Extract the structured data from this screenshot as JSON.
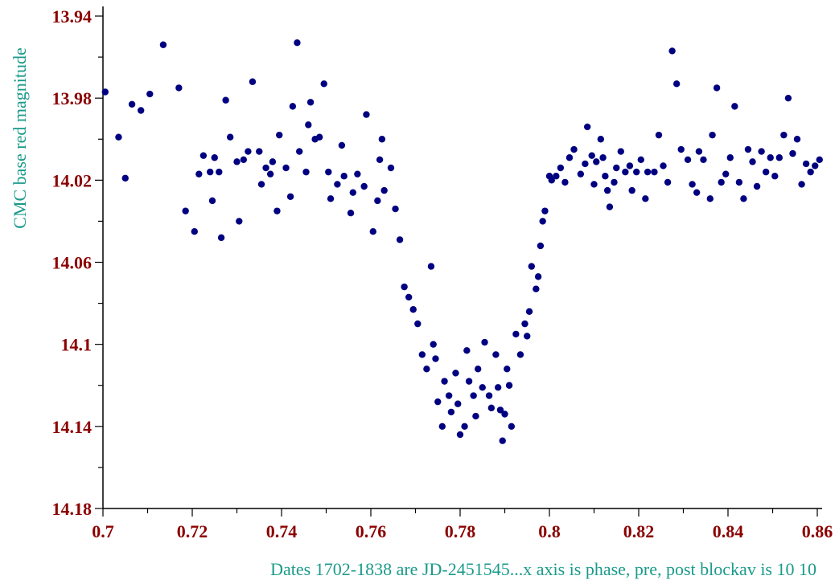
{
  "chart_data": {
    "type": "scatter",
    "title": "",
    "xlabel": "Dates  1702-1838 are JD-2451545...x axis is phase, pre, post blockav is 10 10",
    "ylabel": "CMC base red magnitude",
    "xlim": [
      0.7,
      0.86
    ],
    "ylim": [
      13.94,
      14.18
    ],
    "y_inverted": true,
    "grid": false,
    "legend": "none",
    "x_ticks": [
      "0.7",
      "0.72",
      "0.74",
      "0.76",
      "0.78",
      "0.8",
      "0.82",
      "0.84",
      "0.86"
    ],
    "y_ticks": [
      "13.94",
      "13.98",
      "14.02",
      "14.06",
      "14.1",
      "14.14",
      "14.18"
    ],
    "x_ticks_values": [
      0.7,
      0.72,
      0.74,
      0.76,
      0.78,
      0.8,
      0.82,
      0.84,
      0.86
    ],
    "y_ticks_values": [
      13.94,
      13.98,
      14.02,
      14.06,
      14.1,
      14.14,
      14.18
    ],
    "point_color": "#000080",
    "series": [
      {
        "points": [
          [
            0.7005,
            13.977
          ],
          [
            0.7035,
            13.999
          ],
          [
            0.705,
            14.019
          ],
          [
            0.7065,
            13.983
          ],
          [
            0.7085,
            13.986
          ],
          [
            0.7105,
            13.978
          ],
          [
            0.7135,
            13.954
          ],
          [
            0.717,
            13.975
          ],
          [
            0.7185,
            14.035
          ],
          [
            0.7205,
            14.045
          ],
          [
            0.7215,
            14.017
          ],
          [
            0.7225,
            14.008
          ],
          [
            0.724,
            14.016
          ],
          [
            0.7245,
            14.03
          ],
          [
            0.725,
            14.009
          ],
          [
            0.726,
            14.016
          ],
          [
            0.7265,
            14.048
          ],
          [
            0.7275,
            13.981
          ],
          [
            0.7285,
            13.999
          ],
          [
            0.73,
            14.011
          ],
          [
            0.7305,
            14.04
          ],
          [
            0.7315,
            14.01
          ],
          [
            0.7325,
            14.006
          ],
          [
            0.7335,
            13.972
          ],
          [
            0.735,
            14.006
          ],
          [
            0.7355,
            14.022
          ],
          [
            0.7365,
            14.014
          ],
          [
            0.7375,
            14.017
          ],
          [
            0.738,
            14.011
          ],
          [
            0.739,
            14.035
          ],
          [
            0.7395,
            13.998
          ],
          [
            0.741,
            14.014
          ],
          [
            0.742,
            14.028
          ],
          [
            0.7425,
            13.984
          ],
          [
            0.7435,
            13.953
          ],
          [
            0.744,
            14.006
          ],
          [
            0.7455,
            14.016
          ],
          [
            0.746,
            13.993
          ],
          [
            0.7465,
            13.982
          ],
          [
            0.7475,
            14.0
          ],
          [
            0.7485,
            13.999
          ],
          [
            0.7495,
            13.973
          ],
          [
            0.7505,
            14.016
          ],
          [
            0.751,
            14.029
          ],
          [
            0.7525,
            14.022
          ],
          [
            0.7535,
            14.003
          ],
          [
            0.754,
            14.018
          ],
          [
            0.7555,
            14.036
          ],
          [
            0.756,
            14.026
          ],
          [
            0.757,
            14.017
          ],
          [
            0.7585,
            14.023
          ],
          [
            0.759,
            13.988
          ],
          [
            0.7605,
            14.045
          ],
          [
            0.7615,
            14.03
          ],
          [
            0.762,
            14.01
          ],
          [
            0.7625,
            14.0
          ],
          [
            0.763,
            14.025
          ],
          [
            0.7645,
            14.014
          ],
          [
            0.7655,
            14.034
          ],
          [
            0.7665,
            14.049
          ],
          [
            0.7675,
            14.072
          ],
          [
            0.7685,
            14.077
          ],
          [
            0.7695,
            14.083
          ],
          [
            0.7705,
            14.09
          ],
          [
            0.7715,
            14.105
          ],
          [
            0.7725,
            14.112
          ],
          [
            0.7735,
            14.062
          ],
          [
            0.774,
            14.1
          ],
          [
            0.7745,
            14.107
          ],
          [
            0.775,
            14.128
          ],
          [
            0.776,
            14.14
          ],
          [
            0.7765,
            14.118
          ],
          [
            0.7775,
            14.125
          ],
          [
            0.778,
            14.133
          ],
          [
            0.779,
            14.114
          ],
          [
            0.7795,
            14.129
          ],
          [
            0.78,
            14.144
          ],
          [
            0.781,
            14.14
          ],
          [
            0.7815,
            14.103
          ],
          [
            0.782,
            14.118
          ],
          [
            0.783,
            14.125
          ],
          [
            0.7835,
            14.135
          ],
          [
            0.784,
            14.112
          ],
          [
            0.785,
            14.121
          ],
          [
            0.7855,
            14.099
          ],
          [
            0.7865,
            14.125
          ],
          [
            0.787,
            14.131
          ],
          [
            0.788,
            14.105
          ],
          [
            0.7885,
            14.121
          ],
          [
            0.789,
            14.132
          ],
          [
            0.7895,
            14.147
          ],
          [
            0.79,
            14.134
          ],
          [
            0.7905,
            14.112
          ],
          [
            0.791,
            14.12
          ],
          [
            0.7915,
            14.14
          ],
          [
            0.7925,
            14.095
          ],
          [
            0.7935,
            14.105
          ],
          [
            0.7945,
            14.09
          ],
          [
            0.795,
            14.096
          ],
          [
            0.7955,
            14.084
          ],
          [
            0.796,
            14.062
          ],
          [
            0.797,
            14.073
          ],
          [
            0.7975,
            14.067
          ],
          [
            0.798,
            14.052
          ],
          [
            0.7985,
            14.04
          ],
          [
            0.799,
            14.035
          ],
          [
            0.8,
            14.018
          ],
          [
            0.8005,
            14.02
          ],
          [
            0.8015,
            14.018
          ],
          [
            0.8025,
            14.014
          ],
          [
            0.8035,
            14.021
          ],
          [
            0.8045,
            14.009
          ],
          [
            0.8055,
            14.005
          ],
          [
            0.807,
            14.017
          ],
          [
            0.808,
            14.012
          ],
          [
            0.8085,
            13.994
          ],
          [
            0.8095,
            14.008
          ],
          [
            0.81,
            14.022
          ],
          [
            0.8105,
            14.011
          ],
          [
            0.8115,
            14.0
          ],
          [
            0.812,
            14.009
          ],
          [
            0.8125,
            14.018
          ],
          [
            0.813,
            14.025
          ],
          [
            0.8135,
            14.033
          ],
          [
            0.8145,
            14.021
          ],
          [
            0.815,
            14.014
          ],
          [
            0.816,
            14.006
          ],
          [
            0.817,
            14.016
          ],
          [
            0.818,
            14.013
          ],
          [
            0.8185,
            14.025
          ],
          [
            0.8195,
            14.016
          ],
          [
            0.8205,
            14.01
          ],
          [
            0.8215,
            14.029
          ],
          [
            0.822,
            14.016
          ],
          [
            0.8235,
            14.016
          ],
          [
            0.8245,
            13.998
          ],
          [
            0.8255,
            14.013
          ],
          [
            0.8265,
            14.021
          ],
          [
            0.8275,
            13.957
          ],
          [
            0.8285,
            13.973
          ],
          [
            0.8295,
            14.005
          ],
          [
            0.831,
            14.01
          ],
          [
            0.832,
            14.022
          ],
          [
            0.833,
            14.026
          ],
          [
            0.8335,
            14.006
          ],
          [
            0.8345,
            14.01
          ],
          [
            0.836,
            14.029
          ],
          [
            0.8365,
            13.998
          ],
          [
            0.8375,
            13.975
          ],
          [
            0.8385,
            14.021
          ],
          [
            0.8395,
            14.017
          ],
          [
            0.8405,
            14.009
          ],
          [
            0.8415,
            13.984
          ],
          [
            0.8425,
            14.021
          ],
          [
            0.8435,
            14.029
          ],
          [
            0.8445,
            14.005
          ],
          [
            0.8455,
            14.011
          ],
          [
            0.8465,
            14.023
          ],
          [
            0.8475,
            14.006
          ],
          [
            0.8485,
            14.016
          ],
          [
            0.8495,
            14.009
          ],
          [
            0.8505,
            14.018
          ],
          [
            0.8515,
            14.009
          ],
          [
            0.8525,
            13.998
          ],
          [
            0.8535,
            13.98
          ],
          [
            0.8545,
            14.007
          ],
          [
            0.8555,
            14.0
          ],
          [
            0.8565,
            14.022
          ],
          [
            0.8575,
            14.012
          ],
          [
            0.8585,
            14.016
          ],
          [
            0.8595,
            14.013
          ],
          [
            0.8605,
            14.01
          ]
        ]
      }
    ]
  }
}
